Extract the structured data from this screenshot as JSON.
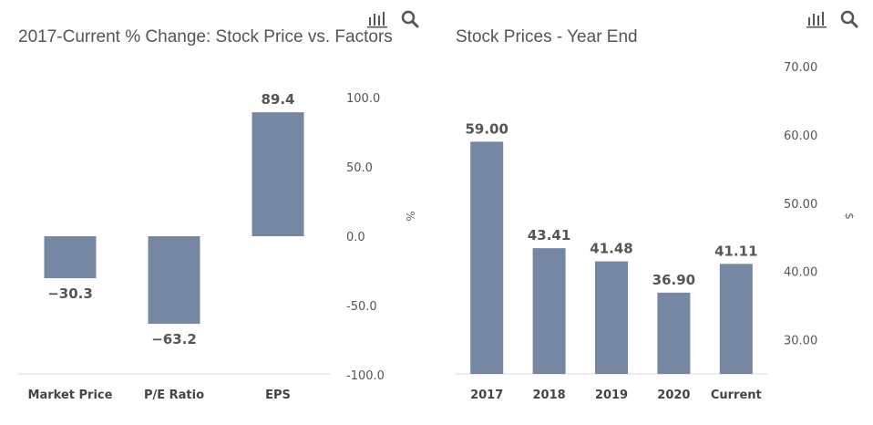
{
  "toolbar": {
    "chart_icon": "bar-chart-icon",
    "search_icon": "search-icon"
  },
  "colors": {
    "bar": "#7587a3",
    "text": "#555555",
    "axis": "#d9d9d9"
  },
  "chart_data": [
    {
      "type": "bar",
      "title": "2017-Current % Change: Stock Price vs. Factors",
      "categories": [
        "Market Price",
        "P/E Ratio",
        "EPS"
      ],
      "values": [
        -30.3,
        -63.2,
        89.4
      ],
      "value_labels": [
        "−30.3",
        "−63.2",
        "89.4"
      ],
      "ylabel": "%",
      "ylim": [
        -100,
        100
      ],
      "yticks": [
        100,
        50,
        0,
        -50,
        -100
      ],
      "ytick_labels": [
        "100.0",
        "50.0",
        "0.0",
        "-50.0",
        "-100.0"
      ],
      "axis_side": "right",
      "grid": false
    },
    {
      "type": "bar",
      "title": "Stock Prices - Year End",
      "categories": [
        "2017",
        "2018",
        "2019",
        "2020",
        "Current"
      ],
      "values": [
        59.0,
        43.41,
        41.48,
        36.9,
        41.11
      ],
      "value_labels": [
        "59.00",
        "43.41",
        "41.48",
        "36.90",
        "41.11"
      ],
      "ylabel": "$",
      "ylim": [
        25,
        70
      ],
      "yticks": [
        70,
        60,
        50,
        40,
        30
      ],
      "ytick_labels": [
        "70.00",
        "60.00",
        "50.00",
        "40.00",
        "30.00"
      ],
      "axis_side": "right",
      "grid": false
    }
  ]
}
